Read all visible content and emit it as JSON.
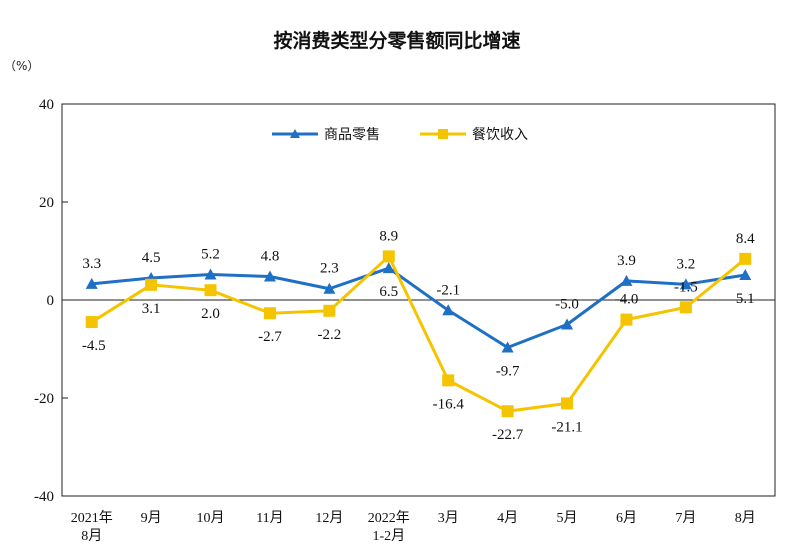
{
  "chart_data": {
    "type": "line",
    "title": "按消费类型分零售额同比增速",
    "unit_label": "（%）",
    "ylim": [
      -40,
      40
    ],
    "yticks": [
      "40",
      "20",
      "0",
      "-20",
      "-40"
    ],
    "ytick_values": [
      40,
      20,
      0,
      -20,
      -40
    ],
    "categories": [
      [
        "2021年",
        "8月"
      ],
      [
        "9月"
      ],
      [
        "10月"
      ],
      [
        "11月"
      ],
      [
        "12月"
      ],
      [
        "2022年",
        "1-2月"
      ],
      [
        "3月"
      ],
      [
        "4月"
      ],
      [
        "5月"
      ],
      [
        "6月"
      ],
      [
        "7月"
      ],
      [
        "8月"
      ]
    ],
    "legend_position": "top-center",
    "series": [
      {
        "name": "商品零售",
        "color": "#1f6fc5",
        "marker": "triangle",
        "values": [
          3.3,
          4.5,
          5.2,
          4.8,
          2.3,
          6.5,
          -2.1,
          -9.7,
          -5.0,
          3.9,
          3.2,
          5.1
        ],
        "labels": [
          "3.3",
          "4.5",
          "5.2",
          "4.8",
          "2.3",
          "6.5",
          "-2.1",
          "-9.7",
          "-5.0",
          "3.9",
          "3.2",
          "5.1"
        ]
      },
      {
        "name": "餐饮收入",
        "color": "#f5c400",
        "marker": "square",
        "values": [
          -4.5,
          3.1,
          2.0,
          -2.7,
          -2.2,
          8.9,
          -16.4,
          -22.7,
          -21.1,
          -4.0,
          -1.5,
          8.4
        ],
        "labels": [
          "-4.5",
          "3.1",
          "2.0",
          "-2.7",
          "-2.2",
          "8.9",
          "-16.4",
          "-22.7",
          "-21.1",
          "-4.0",
          "-1.5",
          "8.4"
        ]
      }
    ]
  }
}
